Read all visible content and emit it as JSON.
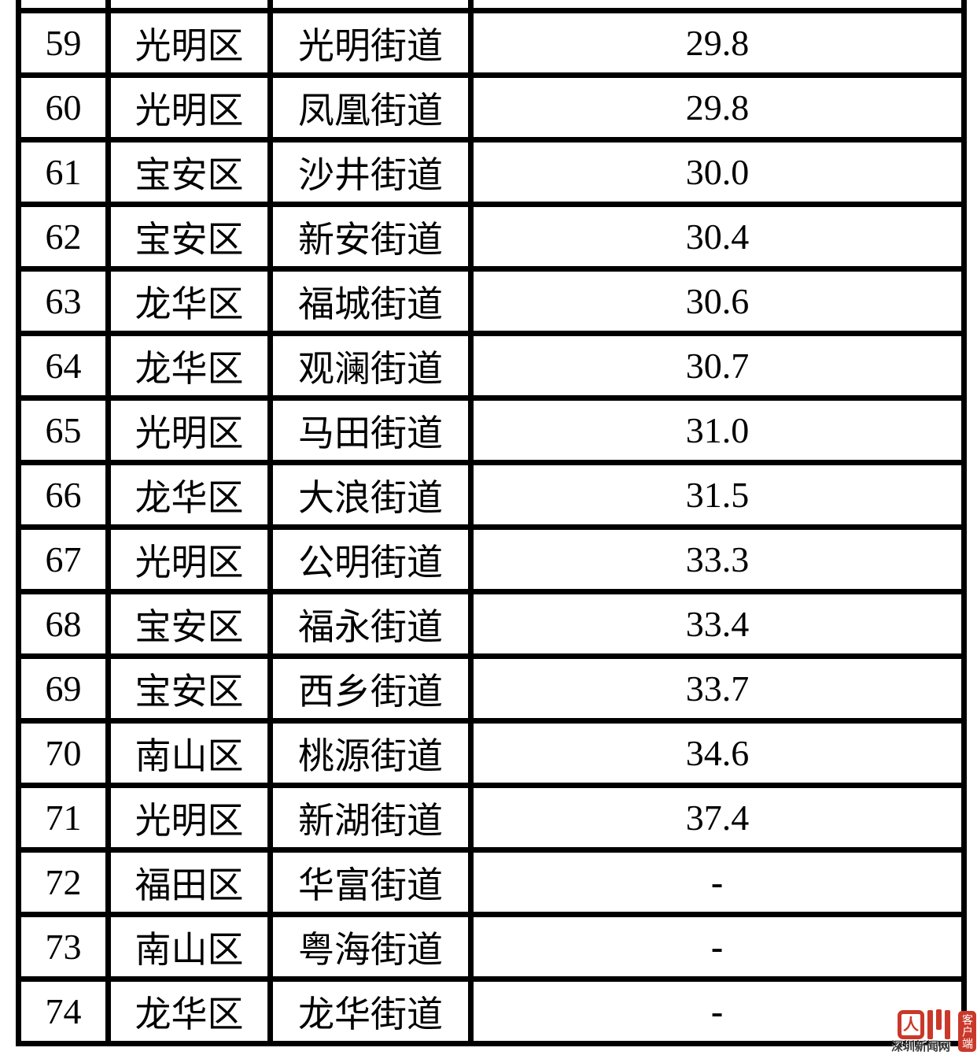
{
  "table": {
    "leading_partial_row": {
      "rank": "",
      "district": "",
      "street": "",
      "value": "",
      "highlight": false
    },
    "rows": [
      {
        "rank": "59",
        "district": "光明区",
        "street": "光明街道",
        "value": "29.8",
        "highlight": false
      },
      {
        "rank": "60",
        "district": "光明区",
        "street": "凤凰街道",
        "value": "29.8",
        "highlight": false
      },
      {
        "rank": "61",
        "district": "宝安区",
        "street": "沙井街道",
        "value": "30.0",
        "highlight": false
      },
      {
        "rank": "62",
        "district": "宝安区",
        "street": "新安街道",
        "value": "30.4",
        "highlight": true
      },
      {
        "rank": "63",
        "district": "龙华区",
        "street": "福城街道",
        "value": "30.6",
        "highlight": true
      },
      {
        "rank": "64",
        "district": "龙华区",
        "street": "观澜街道",
        "value": "30.7",
        "highlight": true
      },
      {
        "rank": "65",
        "district": "光明区",
        "street": "马田街道",
        "value": "31.0",
        "highlight": true
      },
      {
        "rank": "66",
        "district": "龙华区",
        "street": "大浪街道",
        "value": "31.5",
        "highlight": true
      },
      {
        "rank": "67",
        "district": "光明区",
        "street": "公明街道",
        "value": "33.3",
        "highlight": true
      },
      {
        "rank": "68",
        "district": "宝安区",
        "street": "福永街道",
        "value": "33.4",
        "highlight": true
      },
      {
        "rank": "69",
        "district": "宝安区",
        "street": "西乡街道",
        "value": "33.7",
        "highlight": true
      },
      {
        "rank": "70",
        "district": "南山区",
        "street": "桃源街道",
        "value": "34.6",
        "highlight": true
      },
      {
        "rank": "71",
        "district": "光明区",
        "street": "新湖街道",
        "value": "37.4",
        "highlight": true
      },
      {
        "rank": "72",
        "district": "福田区",
        "street": "华富街道",
        "value": "-",
        "highlight": false
      },
      {
        "rank": "73",
        "district": "南山区",
        "street": "粤海街道",
        "value": "-",
        "highlight": false
      },
      {
        "rank": "74",
        "district": "龙华区",
        "street": "龙华街道",
        "value": "-",
        "highlight": false
      }
    ]
  },
  "colors": {
    "highlight_red": "#dd3b2b",
    "text_black": "#000000",
    "border_black": "#000000",
    "logo_red": "#ca382a"
  },
  "watermark": {
    "icon": "shenzhen-news-logo",
    "icon_char": "人",
    "site_name": "深圳新闻网",
    "badge": "客户端"
  },
  "chart_data": {
    "type": "table",
    "columns_visible": false,
    "fields": [
      "rank",
      "district",
      "street",
      "value"
    ],
    "rows": [
      [
        "59",
        "光明区",
        "光明街道",
        "29.8"
      ],
      [
        "60",
        "光明区",
        "凤凰街道",
        "29.8"
      ],
      [
        "61",
        "宝安区",
        "沙井街道",
        "30.0"
      ],
      [
        "62",
        "宝安区",
        "新安街道",
        "30.4"
      ],
      [
        "63",
        "龙华区",
        "福城街道",
        "30.6"
      ],
      [
        "64",
        "龙华区",
        "观澜街道",
        "30.7"
      ],
      [
        "65",
        "光明区",
        "马田街道",
        "31.0"
      ],
      [
        "66",
        "龙华区",
        "大浪街道",
        "31.5"
      ],
      [
        "67",
        "光明区",
        "公明街道",
        "33.3"
      ],
      [
        "68",
        "宝安区",
        "福永街道",
        "33.4"
      ],
      [
        "69",
        "宝安区",
        "西乡街道",
        "33.7"
      ],
      [
        "70",
        "南山区",
        "桃源街道",
        "34.6"
      ],
      [
        "71",
        "光明区",
        "新湖街道",
        "37.4"
      ],
      [
        "72",
        "福田区",
        "华富街道",
        "-"
      ],
      [
        "73",
        "南山区",
        "粤海街道",
        "-"
      ],
      [
        "74",
        "龙华区",
        "龙华街道",
        "-"
      ]
    ],
    "highlighted_ranks": [
      62,
      63,
      64,
      65,
      66,
      67,
      68,
      69,
      70,
      71
    ],
    "highlight_color": "#dd3b2b"
  }
}
